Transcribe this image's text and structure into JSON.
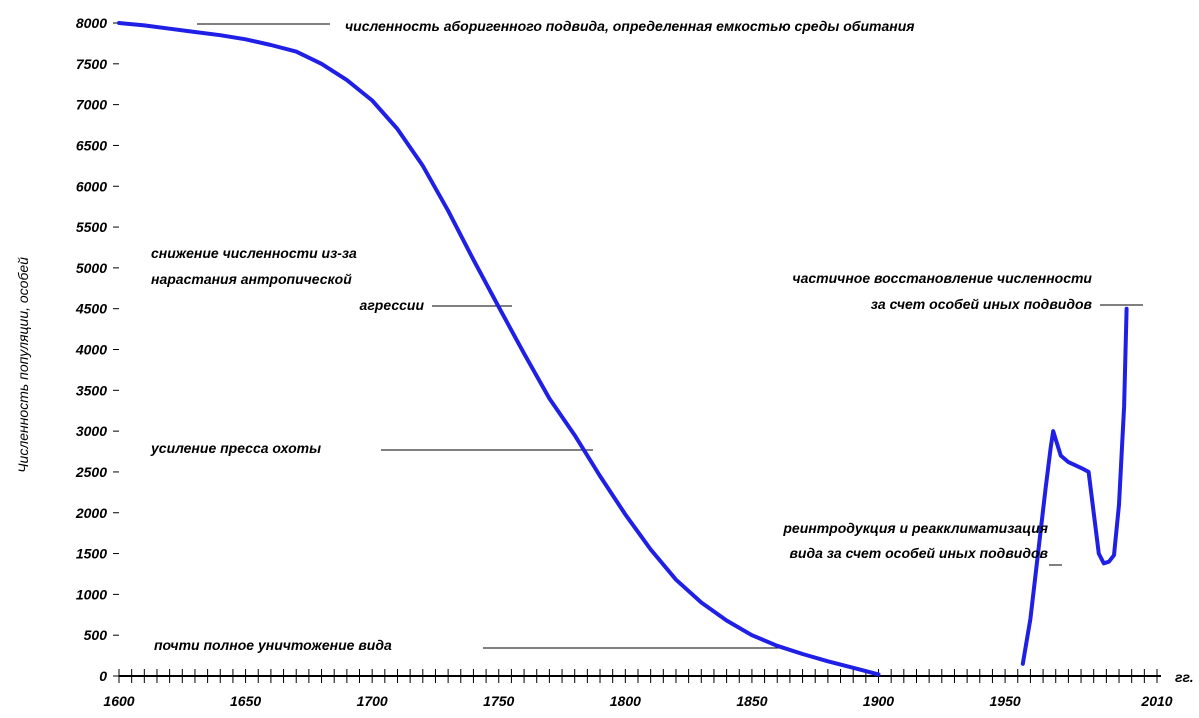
{
  "chart_data": {
    "type": "line",
    "ylabel": "Численность популяции, особей",
    "x_unit_label": "гг.",
    "xlim": [
      1600,
      2010
    ],
    "ylim": [
      0,
      8000
    ],
    "x_ticks": [
      1600,
      1650,
      1700,
      1750,
      1800,
      1850,
      1900,
      1950,
      2010
    ],
    "y_ticks": [
      0,
      500,
      1000,
      1500,
      2000,
      2500,
      3000,
      3500,
      4000,
      4500,
      5000,
      5500,
      6000,
      6500,
      7000,
      7500,
      8000
    ],
    "x_minor_step": 5,
    "series_color": "#1f1fe6",
    "series": [
      {
        "segments": [
          [
            [
              1600,
              8000
            ],
            [
              1610,
              7970
            ],
            [
              1620,
              7930
            ],
            [
              1630,
              7890
            ],
            [
              1640,
              7850
            ],
            [
              1650,
              7800
            ],
            [
              1660,
              7730
            ],
            [
              1670,
              7650
            ],
            [
              1680,
              7500
            ],
            [
              1690,
              7300
            ],
            [
              1700,
              7050
            ],
            [
              1710,
              6700
            ],
            [
              1720,
              6250
            ],
            [
              1730,
              5700
            ],
            [
              1740,
              5100
            ],
            [
              1750,
              4520
            ],
            [
              1760,
              3950
            ],
            [
              1770,
              3400
            ],
            [
              1780,
              2950
            ],
            [
              1790,
              2450
            ],
            [
              1800,
              1980
            ],
            [
              1810,
              1550
            ],
            [
              1820,
              1180
            ],
            [
              1830,
              900
            ],
            [
              1840,
              680
            ],
            [
              1850,
              500
            ],
            [
              1860,
              370
            ],
            [
              1870,
              270
            ],
            [
              1880,
              180
            ],
            [
              1890,
              100
            ],
            [
              1900,
              20
            ]
          ],
          [
            [
              1957,
              150
            ],
            [
              1960,
              700
            ],
            [
              1963,
              1500
            ],
            [
              1966,
              2300
            ],
            [
              1968,
              2800
            ],
            [
              1969,
              3000
            ],
            [
              1970,
              2900
            ],
            [
              1972,
              2700
            ],
            [
              1975,
              2620
            ],
            [
              1980,
              2550
            ],
            [
              1983,
              2500
            ],
            [
              1985,
              2000
            ],
            [
              1987,
              1500
            ],
            [
              1989,
              1380
            ],
            [
              1991,
              1400
            ],
            [
              1993,
              1480
            ],
            [
              1995,
              2100
            ],
            [
              1997,
              3300
            ],
            [
              1998,
              4500
            ]
          ]
        ]
      }
    ],
    "annotations": {
      "top": "численность  аборигенного подвида, определенная емкостью среды обитания",
      "decline": [
        "снижение численности из-за",
        "нарастания  антропической",
        "агрессии"
      ],
      "hunting": "усиление пресса охоты",
      "destruction": "почти полное уничтожение вида",
      "reintro": [
        "реинтродукция и реакклиматизация",
        "вида за счет особей иных подвидов"
      ],
      "recovery": [
        "частичное восстановление численности",
        "за счет особей иных подвидов"
      ]
    }
  }
}
